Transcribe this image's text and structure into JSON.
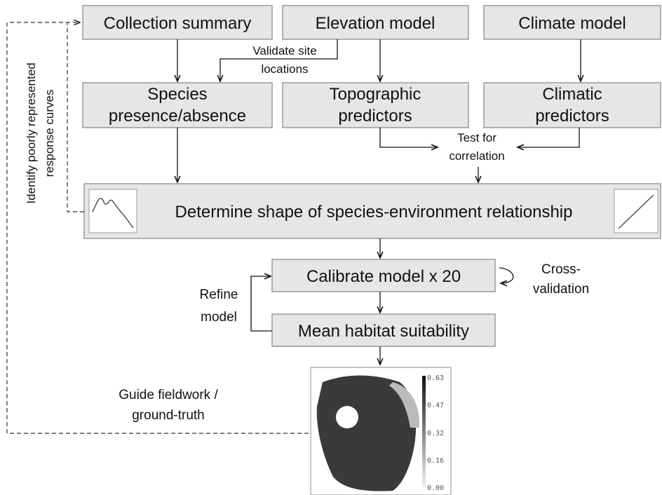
{
  "nodes": [
    {
      "lines": [
        "Collection summary"
      ]
    },
    {
      "lines": [
        "Elevation model"
      ]
    },
    {
      "lines": [
        "Climate model"
      ]
    },
    {
      "lines": [
        "Species",
        "presence/absence"
      ]
    },
    {
      "lines": [
        "Topographic",
        "predictors"
      ]
    },
    {
      "lines": [
        "Climatic",
        "predictors"
      ]
    },
    {
      "lines": [
        "Determine shape of species-environment relationship"
      ]
    },
    {
      "lines": [
        "Calibrate model x 20"
      ]
    },
    {
      "lines": [
        "Mean habitat suitability"
      ]
    }
  ],
  "annotations": [
    {
      "lines": [
        "Validate site",
        "locations"
      ]
    },
    {
      "lines": [
        "Test for",
        "correlation"
      ]
    },
    {
      "lines": [
        "Cross-",
        "validation"
      ]
    },
    {
      "lines": [
        "Refine",
        "model"
      ]
    },
    {
      "lines": [
        "Guide fieldwork /",
        "ground-truth"
      ]
    },
    {
      "lines": [
        "Identify poorly represented",
        "response curves"
      ]
    }
  ],
  "map_legend": [
    "0.63",
    "0.47",
    "0.32",
    "0.16",
    "0.00"
  ]
}
